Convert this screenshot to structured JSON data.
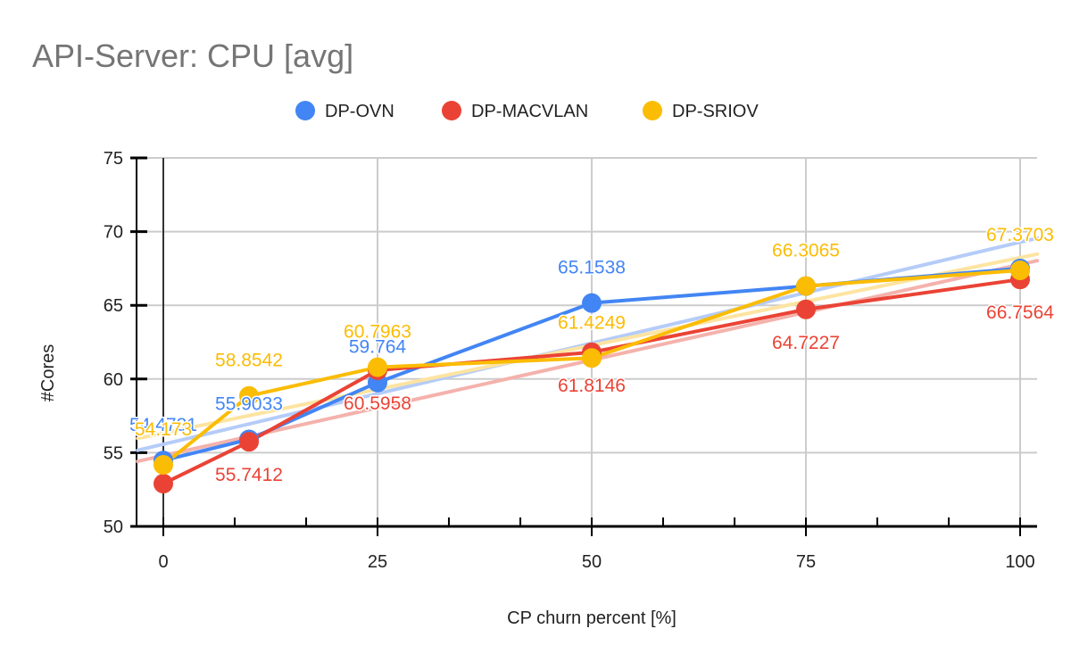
{
  "chart_data": {
    "type": "line",
    "title": "API-Server: CPU [avg]",
    "xlabel": "CP churn percent [%]",
    "ylabel": "#Cores",
    "xlim": [
      0,
      100
    ],
    "ylim": [
      50,
      75
    ],
    "x_ticks": [
      0,
      25,
      50,
      75,
      100
    ],
    "x_minor_ticks": [
      8.33,
      16.67,
      33.33,
      41.67,
      58.33,
      66.67,
      83.33,
      91.67
    ],
    "y_ticks": [
      50,
      55,
      60,
      65,
      70,
      75
    ],
    "grid": true,
    "legend_position": "top",
    "x": [
      0,
      10,
      25,
      50,
      75,
      100
    ],
    "trendlines": true,
    "series": [
      {
        "name": "DP-OVN",
        "color": "#4285f4",
        "trend_color": "#b5ccf8",
        "values": [
          54.4731,
          55.9033,
          59.764,
          65.1538,
          66.3,
          67.5
        ],
        "labels": [
          "54.4731",
          "55.9033",
          "59.764",
          "65.1538",
          "",
          ""
        ],
        "label_pos": [
          "above",
          "above",
          "above",
          "above",
          "none",
          "none"
        ]
      },
      {
        "name": "DP-MACVLAN",
        "color": "#ea4335",
        "trend_color": "#f4b2ac",
        "values": [
          52.9,
          55.7412,
          60.5958,
          61.8146,
          64.7227,
          66.7564
        ],
        "labels": [
          "",
          "55.7412",
          "60.5958",
          "61.8146",
          "64.7227",
          "66.7564"
        ],
        "label_pos": [
          "none",
          "below",
          "below",
          "below",
          "below",
          "below"
        ]
      },
      {
        "name": "DP-SRIOV",
        "color": "#fbbc04",
        "trend_color": "#fde4a1",
        "values": [
          54.173,
          58.8542,
          60.7963,
          61.4249,
          66.3065,
          67.3703
        ],
        "labels": [
          "54.173",
          "58.8542",
          "60.7963",
          "61.4249",
          "66.3065",
          "67.3703"
        ],
        "label_pos": [
          "above",
          "above",
          "above",
          "above",
          "above",
          "above"
        ]
      }
    ]
  }
}
